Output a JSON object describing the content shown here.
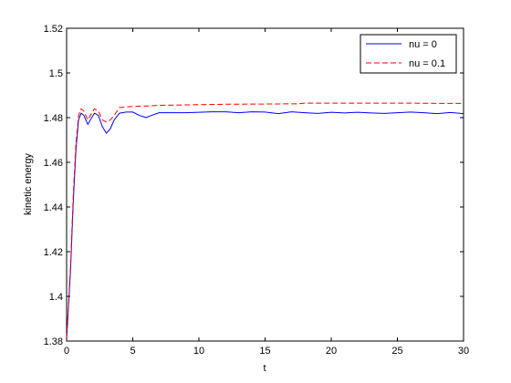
{
  "chart_data": {
    "type": "line",
    "title": "",
    "xlabel": "t",
    "ylabel": "kinetic energy",
    "xlim": [
      0,
      30
    ],
    "ylim": [
      1.38,
      1.52
    ],
    "xticks": [
      "0",
      "5",
      "10",
      "15",
      "20",
      "25",
      "30"
    ],
    "yticks": [
      "1.38",
      "1.4",
      "1.42",
      "1.44",
      "1.46",
      "1.48",
      "1.5",
      "1.52"
    ],
    "grid": false,
    "legend_position": "top-right",
    "series": [
      {
        "name": "nu = 0",
        "color": "#0000ff",
        "style": "solid",
        "x": [
          0,
          0.3,
          0.5,
          0.7,
          0.9,
          1.1,
          1.3,
          1.6,
          1.8,
          2.1,
          2.4,
          2.7,
          3.0,
          3.3,
          3.6,
          4.0,
          4.5,
          5.0,
          5.5,
          6.0,
          6.5,
          7.0,
          8.0,
          9.0,
          10.0,
          11.0,
          12.0,
          13.0,
          14.0,
          15.0,
          16.0,
          17.0,
          18.0,
          19.0,
          20.0,
          21.0,
          22.0,
          23.0,
          24.0,
          25.0,
          26.0,
          27.0,
          28.0,
          29.0,
          30.0
        ],
        "y": [
          1.381,
          1.412,
          1.442,
          1.465,
          1.479,
          1.482,
          1.481,
          1.477,
          1.479,
          1.482,
          1.481,
          1.476,
          1.473,
          1.475,
          1.479,
          1.482,
          1.4825,
          1.4825,
          1.481,
          1.48,
          1.4812,
          1.4822,
          1.4822,
          1.4822,
          1.4824,
          1.4826,
          1.4826,
          1.4822,
          1.4826,
          1.4825,
          1.4818,
          1.4826,
          1.4822,
          1.4819,
          1.4824,
          1.4821,
          1.4824,
          1.4821,
          1.4819,
          1.4822,
          1.4825,
          1.4822,
          1.4818,
          1.4823,
          1.4818
        ]
      },
      {
        "name": "nu = 0.1",
        "color": "#ff0000",
        "style": "dashed",
        "x": [
          0,
          0.3,
          0.5,
          0.7,
          0.9,
          1.1,
          1.3,
          1.6,
          1.8,
          2.1,
          2.4,
          2.7,
          3.0,
          3.3,
          3.6,
          4.0,
          4.5,
          5.0,
          6.0,
          7.0,
          8.0,
          10.0,
          12.0,
          15.0,
          17.5,
          18.0,
          20.0,
          22.0,
          25.0,
          28.0,
          30.0
        ],
        "y": [
          1.381,
          1.414,
          1.445,
          1.468,
          1.481,
          1.484,
          1.483,
          1.479,
          1.481,
          1.484,
          1.483,
          1.479,
          1.478,
          1.479,
          1.481,
          1.4845,
          1.4848,
          1.485,
          1.4852,
          1.4855,
          1.4856,
          1.4858,
          1.486,
          1.4861,
          1.4862,
          1.4865,
          1.4865,
          1.4865,
          1.4865,
          1.4864,
          1.4864
        ]
      }
    ]
  }
}
